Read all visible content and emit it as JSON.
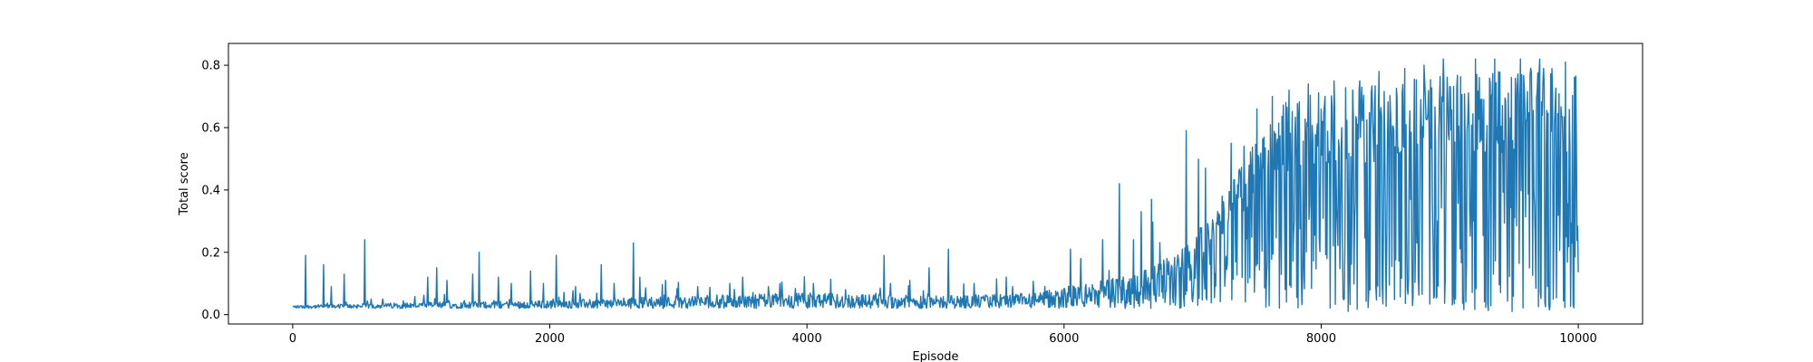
{
  "chart_data": {
    "type": "line",
    "title": "",
    "xlabel": "Episode",
    "ylabel": "Total score",
    "xlim": [
      -500,
      10500
    ],
    "ylim": [
      -0.03,
      0.87
    ],
    "xticks": [
      0,
      2000,
      4000,
      6000,
      8000,
      10000
    ],
    "xtick_labels": [
      "0",
      "2000",
      "4000",
      "6000",
      "8000",
      "10000"
    ],
    "yticks": [
      0.0,
      0.2,
      0.4,
      0.6,
      0.8
    ],
    "ytick_labels": [
      "0.0",
      "0.2",
      "0.4",
      "0.6",
      "0.8"
    ],
    "grid": false,
    "series": [
      {
        "color": "#1f77b4",
        "episodes": [
          0,
          10000
        ],
        "envelope": {
          "x": [
            0,
            500,
            1000,
            2000,
            3000,
            4000,
            5000,
            5800,
            6000,
            6400,
            6800,
            7000,
            7200,
            7400,
            7600,
            7700,
            7800,
            8000,
            8200,
            8400,
            8600,
            8800,
            9000,
            9200,
            9400,
            9600,
            9800,
            10000
          ],
          "base": [
            0.02,
            0.02,
            0.02,
            0.02,
            0.02,
            0.02,
            0.02,
            0.02,
            0.02,
            0.02,
            0.02,
            0.02,
            0.02,
            0.02,
            0.02,
            0.02,
            0.02,
            0.02,
            0.02,
            0.02,
            0.02,
            0.02,
            0.02,
            0.02,
            0.02,
            0.02,
            0.02,
            0.02
          ],
          "upper": [
            0.03,
            0.035,
            0.04,
            0.045,
            0.06,
            0.07,
            0.06,
            0.07,
            0.09,
            0.12,
            0.18,
            0.24,
            0.35,
            0.5,
            0.62,
            0.68,
            0.7,
            0.72,
            0.73,
            0.74,
            0.75,
            0.76,
            0.77,
            0.78,
            0.79,
            0.79,
            0.8,
            0.78
          ]
        },
        "spikes": [
          {
            "x": 100,
            "y": 0.19
          },
          {
            "x": 240,
            "y": 0.16
          },
          {
            "x": 300,
            "y": 0.09
          },
          {
            "x": 400,
            "y": 0.13
          },
          {
            "x": 560,
            "y": 0.24
          },
          {
            "x": 700,
            "y": 0.05
          },
          {
            "x": 1050,
            "y": 0.12
          },
          {
            "x": 1120,
            "y": 0.15
          },
          {
            "x": 1200,
            "y": 0.11
          },
          {
            "x": 1400,
            "y": 0.13
          },
          {
            "x": 1450,
            "y": 0.2
          },
          {
            "x": 1600,
            "y": 0.12
          },
          {
            "x": 1700,
            "y": 0.1
          },
          {
            "x": 1850,
            "y": 0.14
          },
          {
            "x": 1950,
            "y": 0.1
          },
          {
            "x": 2050,
            "y": 0.19
          },
          {
            "x": 2200,
            "y": 0.09
          },
          {
            "x": 2400,
            "y": 0.16
          },
          {
            "x": 2500,
            "y": 0.1
          },
          {
            "x": 2650,
            "y": 0.23
          },
          {
            "x": 2700,
            "y": 0.12
          },
          {
            "x": 2900,
            "y": 0.11
          },
          {
            "x": 3150,
            "y": 0.09
          },
          {
            "x": 3400,
            "y": 0.1
          },
          {
            "x": 3500,
            "y": 0.12
          },
          {
            "x": 3700,
            "y": 0.09
          },
          {
            "x": 4050,
            "y": 0.1
          },
          {
            "x": 4300,
            "y": 0.08
          },
          {
            "x": 4600,
            "y": 0.19
          },
          {
            "x": 4650,
            "y": 0.1
          },
          {
            "x": 4800,
            "y": 0.11
          },
          {
            "x": 4950,
            "y": 0.15
          },
          {
            "x": 5100,
            "y": 0.21
          },
          {
            "x": 5300,
            "y": 0.1
          },
          {
            "x": 5550,
            "y": 0.12
          },
          {
            "x": 5600,
            "y": 0.09
          },
          {
            "x": 5850,
            "y": 0.09
          },
          {
            "x": 6050,
            "y": 0.21
          },
          {
            "x": 6300,
            "y": 0.24
          },
          {
            "x": 6430,
            "y": 0.42
          },
          {
            "x": 6540,
            "y": 0.24
          },
          {
            "x": 6600,
            "y": 0.33
          },
          {
            "x": 6680,
            "y": 0.37
          },
          {
            "x": 6800,
            "y": 0.18
          },
          {
            "x": 6950,
            "y": 0.59
          },
          {
            "x": 7100,
            "y": 0.47
          },
          {
            "x": 7230,
            "y": 0.38
          },
          {
            "x": 7300,
            "y": 0.55
          },
          {
            "x": 7400,
            "y": 0.54
          },
          {
            "x": 7500,
            "y": 0.66
          },
          {
            "x": 7620,
            "y": 0.7
          },
          {
            "x": 7750,
            "y": 0.72
          },
          {
            "x": 7900,
            "y": 0.74
          },
          {
            "x": 8100,
            "y": 0.75
          },
          {
            "x": 8300,
            "y": 0.75
          },
          {
            "x": 8450,
            "y": 0.78
          },
          {
            "x": 8650,
            "y": 0.79
          },
          {
            "x": 8800,
            "y": 0.8
          },
          {
            "x": 8950,
            "y": 0.82
          },
          {
            "x": 9200,
            "y": 0.82
          },
          {
            "x": 9350,
            "y": 0.82
          },
          {
            "x": 9550,
            "y": 0.82
          },
          {
            "x": 9700,
            "y": 0.82
          },
          {
            "x": 9900,
            "y": 0.81
          }
        ],
        "dips": {
          "x_start": 7700,
          "x_end": 10000,
          "min": 0.01,
          "density": 0.08
        }
      }
    ]
  }
}
